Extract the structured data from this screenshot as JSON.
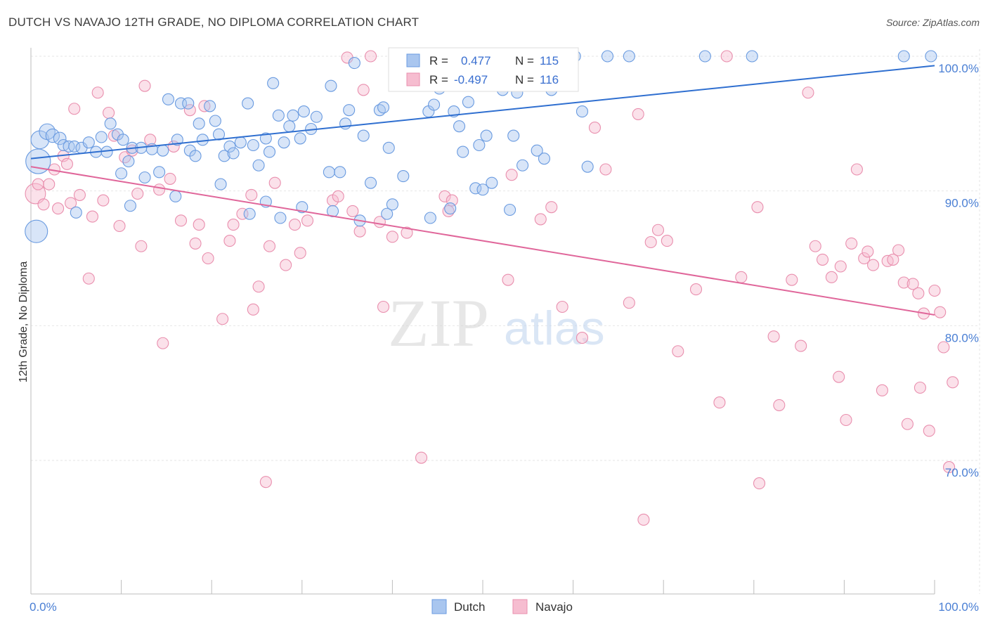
{
  "title": "DUTCH VS NAVAJO 12TH GRADE, NO DIPLOMA CORRELATION CHART",
  "source": "Source: ZipAtlas.com",
  "watermark": {
    "zip": "ZIP",
    "atlas": "atlas"
  },
  "colors": {
    "dutch_fill": "#a9c6ef",
    "dutch_stroke": "#6a9be0",
    "dutch_line": "#2f6fd0",
    "navajo_fill": "#f6bdd0",
    "navajo_stroke": "#e98fae",
    "navajo_line": "#e0669a",
    "tick_label": "#4a7fd4",
    "grid": "#e6e6e6"
  },
  "legend": {
    "rows": [
      {
        "r_label": "R =",
        "r_value": "0.477",
        "n_label": "N =",
        "n_value": "115"
      },
      {
        "r_label": "R =",
        "r_value": "-0.497",
        "n_label": "N =",
        "n_value": "116"
      }
    ]
  },
  "chart_data": {
    "type": "scatter",
    "title": "DUTCH VS NAVAJO 12TH GRADE, NO DIPLOMA CORRELATION CHART",
    "xlabel": "",
    "ylabel": "12th Grade, No Diploma",
    "xlim": [
      0,
      100
    ],
    "ylim": [
      60,
      102
    ],
    "x_tick_labels": [
      "0.0%",
      "100.0%"
    ],
    "y_ticks": [
      70,
      80,
      90,
      100
    ],
    "y_tick_labels": [
      "70.0%",
      "80.0%",
      "90.0%",
      "100.0%"
    ],
    "grid": true,
    "legend_position": "top-center",
    "series": [
      {
        "name": "Dutch",
        "trendline": {
          "x": [
            0,
            100
          ],
          "y": [
            92.4,
            99.3
          ]
        },
        "points": [
          [
            0.8,
            92.2,
            2.2
          ],
          [
            0.6,
            87.0,
            2.0
          ],
          [
            1.0,
            93.8,
            1.6
          ],
          [
            1.8,
            94.4,
            1.4
          ],
          [
            2.4,
            94.1,
            1.2
          ],
          [
            3.2,
            93.9,
            1.1
          ],
          [
            3.6,
            93.4,
            1
          ],
          [
            4.2,
            93.3,
            1
          ],
          [
            4.8,
            93.3,
            1
          ],
          [
            5.6,
            93.2,
            1
          ],
          [
            6.4,
            93.6,
            1
          ],
          [
            7.2,
            92.9,
            1
          ],
          [
            8.4,
            92.9,
            1
          ],
          [
            7.8,
            94.0,
            1
          ],
          [
            8.8,
            95.0,
            1
          ],
          [
            9.6,
            94.2,
            1
          ],
          [
            10.2,
            93.8,
            1
          ],
          [
            11.2,
            93.2,
            1
          ],
          [
            10.0,
            91.3,
            1
          ],
          [
            10.8,
            92.2,
            1
          ],
          [
            12.2,
            93.2,
            1
          ],
          [
            12.6,
            91.0,
            1
          ],
          [
            13.4,
            93.1,
            1
          ],
          [
            14.2,
            91.4,
            1
          ],
          [
            14.6,
            93.0,
            1
          ],
          [
            15.2,
            96.8,
            1
          ],
          [
            16.2,
            93.8,
            1
          ],
          [
            16.6,
            96.5,
            1
          ],
          [
            17.4,
            96.5,
            1
          ],
          [
            17.6,
            93.0,
            1
          ],
          [
            18.2,
            92.6,
            1
          ],
          [
            18.6,
            95.0,
            1
          ],
          [
            19.0,
            93.8,
            1
          ],
          [
            19.8,
            96.3,
            1
          ],
          [
            20.4,
            95.2,
            1
          ],
          [
            20.8,
            94.2,
            1
          ],
          [
            21.4,
            92.6,
            1
          ],
          [
            22.0,
            93.3,
            1
          ],
          [
            22.4,
            92.8,
            1
          ],
          [
            21.0,
            90.5,
            1
          ],
          [
            23.2,
            93.6,
            1
          ],
          [
            24.0,
            96.5,
            1
          ],
          [
            24.6,
            93.4,
            1
          ],
          [
            25.2,
            91.9,
            1
          ],
          [
            26.0,
            93.9,
            1
          ],
          [
            26.4,
            92.9,
            1
          ],
          [
            26.8,
            98.0,
            1
          ],
          [
            27.4,
            95.6,
            1
          ],
          [
            28.0,
            93.6,
            1
          ],
          [
            28.6,
            94.8,
            1
          ],
          [
            29.0,
            95.6,
            1
          ],
          [
            29.8,
            93.9,
            1
          ],
          [
            30.2,
            95.9,
            1
          ],
          [
            31.0,
            94.6,
            1
          ],
          [
            31.6,
            95.5,
            1
          ],
          [
            33.0,
            91.4,
            1
          ],
          [
            33.2,
            97.8,
            1
          ],
          [
            34.2,
            91.4,
            1
          ],
          [
            34.8,
            95.0,
            1
          ],
          [
            35.2,
            96.0,
            1
          ],
          [
            35.8,
            99.5,
            1
          ],
          [
            36.8,
            94.1,
            1
          ],
          [
            37.6,
            90.6,
            1
          ],
          [
            38.6,
            96.0,
            1
          ],
          [
            39.0,
            96.2,
            1
          ],
          [
            39.6,
            93.2,
            1
          ],
          [
            40.6,
            100.0,
            1
          ],
          [
            41.2,
            91.1,
            1
          ],
          [
            41.8,
            98.0,
            1
          ],
          [
            42.6,
            98.8,
            1
          ],
          [
            44.0,
            95.9,
            1
          ],
          [
            44.6,
            96.4,
            1
          ],
          [
            45.2,
            97.6,
            1
          ],
          [
            46.4,
            88.7,
            1
          ],
          [
            46.8,
            95.9,
            1
          ],
          [
            47.4,
            94.8,
            1
          ],
          [
            47.8,
            92.9,
            1
          ],
          [
            48.4,
            96.6,
            1
          ],
          [
            49.2,
            90.2,
            1
          ],
          [
            49.6,
            93.4,
            1
          ],
          [
            50.0,
            90.1,
            1
          ],
          [
            50.4,
            94.1,
            1
          ],
          [
            51.0,
            90.6,
            1
          ],
          [
            52.2,
            97.5,
            1
          ],
          [
            52.6,
            100.0,
            1
          ],
          [
            53.4,
            94.1,
            1
          ],
          [
            53.8,
            97.3,
            1
          ],
          [
            54.4,
            91.9,
            1
          ],
          [
            55.2,
            99.0,
            1
          ],
          [
            55.8,
            100.0,
            1
          ],
          [
            56.0,
            93.0,
            1
          ],
          [
            56.8,
            92.4,
            1
          ],
          [
            57.6,
            97.5,
            1
          ],
          [
            60.2,
            100.0,
            1
          ],
          [
            61.0,
            95.9,
            1
          ],
          [
            61.6,
            91.8,
            1
          ],
          [
            63.8,
            100.0,
            1
          ],
          [
            66.2,
            100.0,
            1
          ],
          [
            74.6,
            100.0,
            1
          ],
          [
            79.8,
            100.0,
            1
          ],
          [
            96.6,
            100.0,
            1
          ],
          [
            99.6,
            100.0,
            1
          ],
          [
            27.6,
            88.0,
            1
          ],
          [
            26.0,
            89.2,
            1
          ],
          [
            30.0,
            88.8,
            1
          ],
          [
            24.2,
            88.3,
            1
          ],
          [
            16.0,
            89.6,
            1
          ],
          [
            33.4,
            88.5,
            1
          ],
          [
            11.0,
            88.9,
            1
          ],
          [
            5.0,
            88.4,
            1
          ],
          [
            39.4,
            88.3,
            1
          ],
          [
            40.0,
            89.0,
            1
          ],
          [
            44.2,
            88.0,
            1
          ],
          [
            36.4,
            87.8,
            1
          ],
          [
            53.0,
            88.6,
            1
          ]
        ]
      },
      {
        "name": "Navajo",
        "trendline": {
          "x": [
            0,
            100
          ],
          "y": [
            91.8,
            80.8
          ]
        },
        "points": [
          [
            0.5,
            89.8,
            1.8
          ],
          [
            0.8,
            90.5,
            1
          ],
          [
            1.4,
            89.0,
            1
          ],
          [
            2.0,
            90.5,
            1
          ],
          [
            2.6,
            91.6,
            1
          ],
          [
            3.0,
            88.7,
            1
          ],
          [
            3.6,
            92.6,
            1
          ],
          [
            4.0,
            92.0,
            1
          ],
          [
            4.4,
            89.1,
            1
          ],
          [
            4.8,
            96.1,
            1
          ],
          [
            5.4,
            89.7,
            1
          ],
          [
            6.4,
            83.5,
            1
          ],
          [
            6.8,
            88.1,
            1
          ],
          [
            7.4,
            97.3,
            1
          ],
          [
            8.0,
            89.3,
            1
          ],
          [
            8.6,
            95.8,
            1
          ],
          [
            9.2,
            94.1,
            1
          ],
          [
            9.8,
            87.4,
            1
          ],
          [
            10.4,
            92.5,
            1
          ],
          [
            11.2,
            93.0,
            1
          ],
          [
            11.8,
            89.8,
            1
          ],
          [
            12.2,
            85.9,
            1
          ],
          [
            12.6,
            97.8,
            1
          ],
          [
            13.2,
            93.8,
            1
          ],
          [
            14.2,
            90.1,
            1
          ],
          [
            14.6,
            78.7,
            1
          ],
          [
            15.4,
            90.9,
            1
          ],
          [
            15.8,
            93.3,
            1
          ],
          [
            16.6,
            87.8,
            1
          ],
          [
            17.6,
            96.0,
            1
          ],
          [
            18.2,
            86.1,
            1
          ],
          [
            18.6,
            87.5,
            1
          ],
          [
            19.2,
            96.3,
            1
          ],
          [
            19.6,
            85.0,
            1
          ],
          [
            21.2,
            80.5,
            1
          ],
          [
            22.4,
            87.5,
            1
          ],
          [
            23.4,
            88.3,
            1
          ],
          [
            24.4,
            89.7,
            1
          ],
          [
            24.6,
            81.2,
            1
          ],
          [
            25.2,
            82.9,
            1
          ],
          [
            26.0,
            68.4,
            1
          ],
          [
            26.4,
            85.9,
            1
          ],
          [
            27.0,
            90.6,
            1
          ],
          [
            28.2,
            84.5,
            1
          ],
          [
            29.2,
            87.5,
            1
          ],
          [
            30.6,
            87.8,
            1
          ],
          [
            33.4,
            89.3,
            1
          ],
          [
            34.0,
            89.6,
            1
          ],
          [
            35.0,
            99.9,
            1
          ],
          [
            35.6,
            88.5,
            1
          ],
          [
            36.4,
            87.0,
            1
          ],
          [
            36.8,
            97.5,
            1
          ],
          [
            37.6,
            100.0,
            1
          ],
          [
            38.6,
            87.7,
            1
          ],
          [
            39.0,
            81.4,
            1
          ],
          [
            40.0,
            86.6,
            1
          ],
          [
            43.2,
            70.2,
            1
          ],
          [
            45.8,
            89.6,
            1
          ],
          [
            46.2,
            88.5,
            1
          ],
          [
            46.6,
            89.3,
            1
          ],
          [
            52.8,
            83.4,
            1
          ],
          [
            53.2,
            91.2,
            1
          ],
          [
            57.6,
            88.8,
            1
          ],
          [
            58.8,
            81.4,
            1
          ],
          [
            61.0,
            79.1,
            1
          ],
          [
            62.4,
            94.7,
            1
          ],
          [
            63.6,
            91.6,
            1
          ],
          [
            66.2,
            81.7,
            1
          ],
          [
            67.2,
            95.7,
            1
          ],
          [
            67.8,
            65.6,
            1
          ],
          [
            68.6,
            86.2,
            1
          ],
          [
            69.4,
            87.1,
            1
          ],
          [
            70.4,
            86.3,
            1
          ],
          [
            71.6,
            78.1,
            1
          ],
          [
            73.6,
            82.7,
            1
          ],
          [
            76.2,
            74.3,
            1
          ],
          [
            77.0,
            100.0,
            1
          ],
          [
            78.6,
            83.6,
            1
          ],
          [
            80.4,
            88.8,
            1
          ],
          [
            80.6,
            68.3,
            1
          ],
          [
            82.2,
            79.2,
            1
          ],
          [
            82.8,
            74.1,
            1
          ],
          [
            84.2,
            83.4,
            1
          ],
          [
            85.2,
            78.5,
            1
          ],
          [
            86.0,
            97.3,
            1
          ],
          [
            86.8,
            85.9,
            1
          ],
          [
            87.6,
            84.9,
            1
          ],
          [
            88.6,
            83.6,
            1
          ],
          [
            89.4,
            76.2,
            1
          ],
          [
            89.6,
            84.4,
            1
          ],
          [
            90.2,
            73.0,
            1
          ],
          [
            90.8,
            86.1,
            1
          ],
          [
            91.4,
            91.6,
            1
          ],
          [
            92.2,
            85.0,
            1
          ],
          [
            92.6,
            85.5,
            1
          ],
          [
            93.2,
            84.5,
            1
          ],
          [
            94.2,
            75.2,
            1
          ],
          [
            94.8,
            84.8,
            1
          ],
          [
            95.4,
            84.9,
            1
          ],
          [
            96.0,
            85.6,
            1
          ],
          [
            96.6,
            83.2,
            1
          ],
          [
            97.0,
            72.7,
            1
          ],
          [
            97.6,
            83.1,
            1
          ],
          [
            98.2,
            82.4,
            1
          ],
          [
            98.4,
            75.4,
            1
          ],
          [
            98.8,
            80.9,
            1
          ],
          [
            99.4,
            72.2,
            1
          ],
          [
            100.0,
            82.6,
            1
          ],
          [
            100.6,
            81.0,
            1
          ],
          [
            101.0,
            78.4,
            1
          ],
          [
            101.6,
            69.5,
            1
          ],
          [
            102.0,
            75.8,
            1
          ],
          [
            56.4,
            87.9,
            1
          ],
          [
            41.6,
            86.9,
            1
          ],
          [
            29.8,
            85.4,
            1
          ],
          [
            22.0,
            86.3,
            1
          ]
        ]
      }
    ]
  },
  "bottom_legend": [
    {
      "label": "Dutch"
    },
    {
      "label": "Navajo"
    }
  ]
}
